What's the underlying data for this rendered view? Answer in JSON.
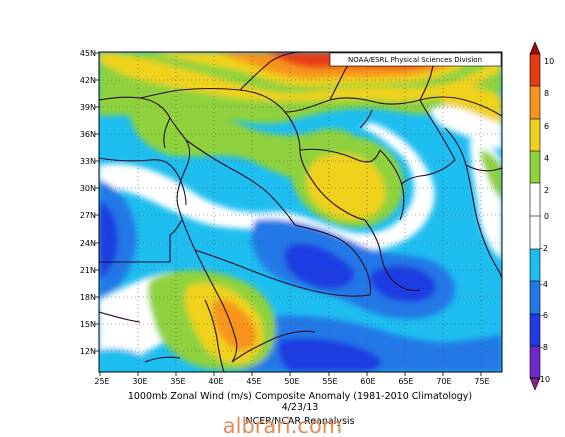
{
  "credit": "NOAA/ESRL Physical Sciences Division",
  "caption": {
    "line1": "1000mb Zonal Wind (m/s) Composite Anomaly (1981-2010 Climatology)",
    "line2": "4/23/13",
    "line3": "NCEP/NCAR Reanalysis"
  },
  "watermark": "albrari.com",
  "lat_labels": [
    "45N",
    "42N",
    "39N",
    "36N",
    "33N",
    "30N",
    "27N",
    "24N",
    "21N",
    "18N",
    "15N",
    "12N"
  ],
  "lon_labels": [
    "25E",
    "30E",
    "35E",
    "40E",
    "45E",
    "50E",
    "55E",
    "60E",
    "65E",
    "70E",
    "75E"
  ],
  "colorbar": {
    "labels": [
      "10",
      "8",
      "6",
      "4",
      "2",
      "0",
      "-2",
      "-4",
      "-6",
      "-8",
      "-10"
    ],
    "colors": {
      "10": "#9e0a0a",
      "8": "#e63c14",
      "6": "#f7941d",
      "4": "#f0d21e",
      "2": "#8fd23c",
      "0": "#ffffff",
      "-2": "#1ebef0",
      "-4": "#2178e6",
      "-6": "#1e3ce1",
      "-8": "#6e28c8",
      "-10": "#8c1e96"
    }
  }
}
